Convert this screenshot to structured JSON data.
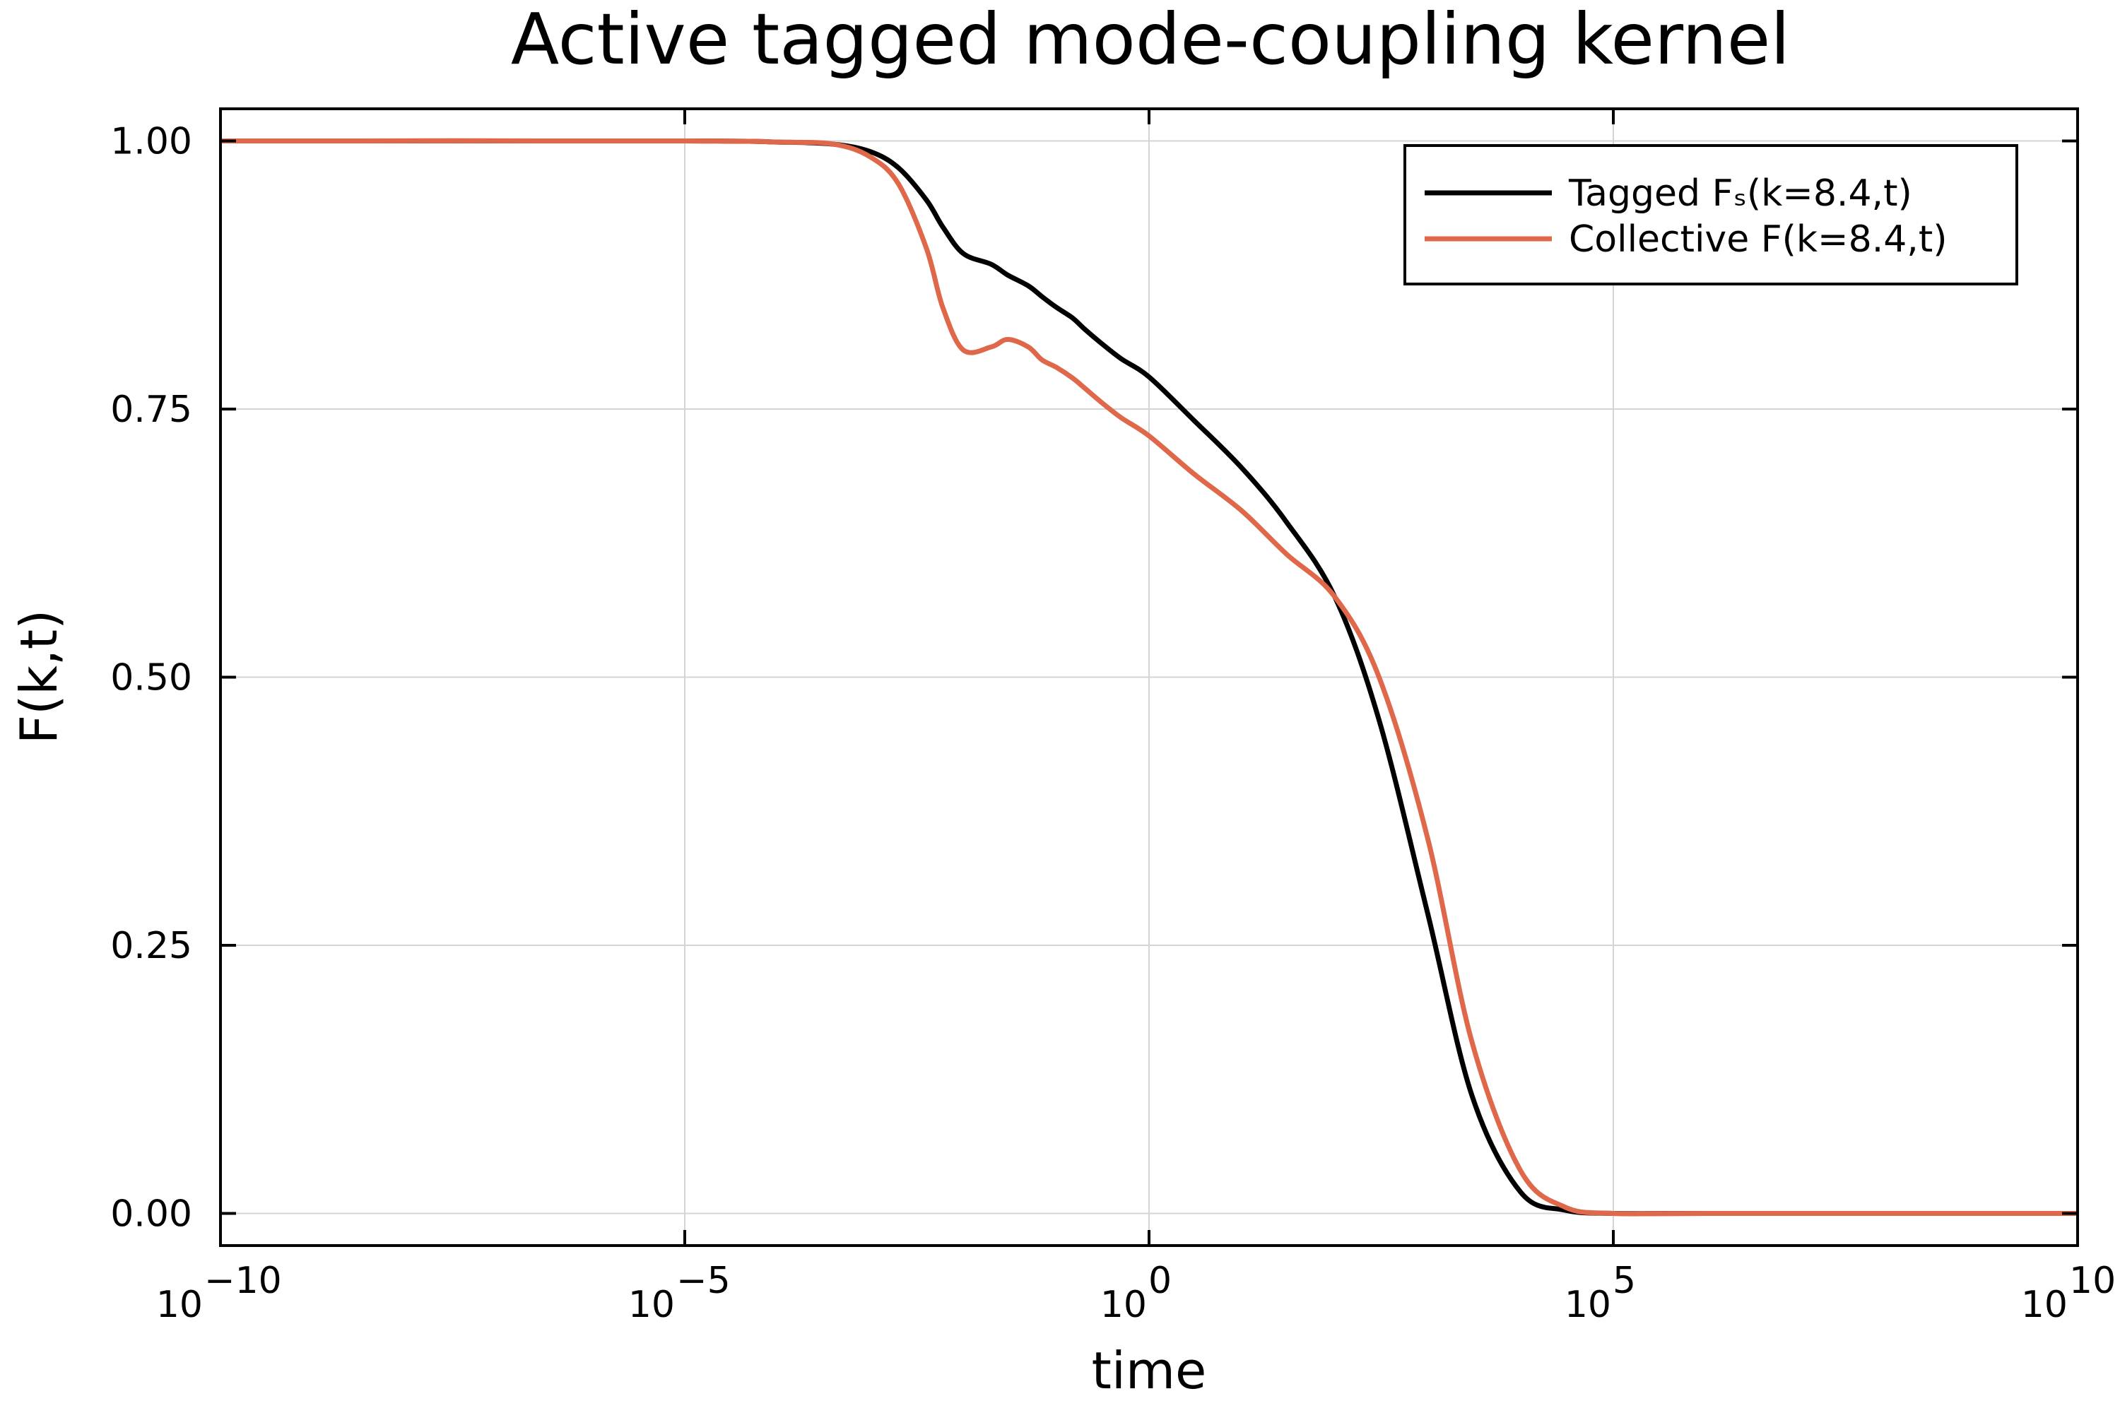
{
  "chart_data": {
    "type": "line",
    "title": "Active tagged mode-coupling kernel",
    "xlabel": "time",
    "ylabel": "F(k,t)",
    "xscale": "log",
    "xlim": [
      1e-10,
      10000000000.0
    ],
    "ylim": [
      -0.03,
      1.03
    ],
    "x_ticks": [
      {
        "value": 1e-10,
        "base": "10",
        "exp": "−10"
      },
      {
        "value": 1e-05,
        "base": "10",
        "exp": "−5"
      },
      {
        "value": 1,
        "base": "10",
        "exp": "0"
      },
      {
        "value": 100000.0,
        "base": "10",
        "exp": "5"
      },
      {
        "value": 10000000000.0,
        "base": "10",
        "exp": "10"
      }
    ],
    "y_ticks": [
      {
        "value": 0.0,
        "label": "0.00"
      },
      {
        "value": 0.25,
        "label": "0.25"
      },
      {
        "value": 0.5,
        "label": "0.50"
      },
      {
        "value": 0.75,
        "label": "0.75"
      },
      {
        "value": 1.0,
        "label": "1.00"
      }
    ],
    "grid": true,
    "legend_position": "top-right",
    "series": [
      {
        "name": "Tagged Fₛ(k=8.4,t)",
        "color": "#000000",
        "x": [
          1e-10,
          1e-05,
          0.0001,
          0.0004,
          0.001,
          0.002,
          0.004,
          0.006,
          0.01,
          0.02,
          0.03,
          0.05,
          0.07,
          0.1,
          0.15,
          0.2,
          0.3,
          0.5,
          1,
          3,
          10,
          30,
          100,
          300,
          1000,
          3000,
          10000,
          30000,
          100000,
          1000000.0,
          10000000000.0
        ],
        "y": [
          1.0,
          1.0,
          0.999,
          0.997,
          0.99,
          0.975,
          0.945,
          0.92,
          0.895,
          0.885,
          0.875,
          0.865,
          0.855,
          0.845,
          0.835,
          0.825,
          0.812,
          0.797,
          0.78,
          0.74,
          0.695,
          0.645,
          0.575,
          0.46,
          0.28,
          0.11,
          0.02,
          0.003,
          0.0,
          0.0,
          0.0
        ]
      },
      {
        "name": "Collective F(k=8.4,t)",
        "color": "#e0684a",
        "x": [
          1e-10,
          1e-05,
          0.0001,
          0.0004,
          0.001,
          0.002,
          0.004,
          0.006,
          0.01,
          0.02,
          0.03,
          0.05,
          0.07,
          0.1,
          0.15,
          0.2,
          0.3,
          0.5,
          1,
          3,
          10,
          30,
          100,
          300,
          1000,
          3000,
          10000,
          30000,
          100000,
          1000000.0,
          10000000000.0
        ],
        "y": [
          1.0,
          1.0,
          0.999,
          0.997,
          0.985,
          0.96,
          0.9,
          0.845,
          0.805,
          0.808,
          0.815,
          0.808,
          0.796,
          0.789,
          0.779,
          0.77,
          0.757,
          0.742,
          0.725,
          0.69,
          0.655,
          0.615,
          0.575,
          0.5,
          0.35,
          0.16,
          0.04,
          0.006,
          0.0,
          0.0,
          0.0
        ]
      }
    ]
  }
}
